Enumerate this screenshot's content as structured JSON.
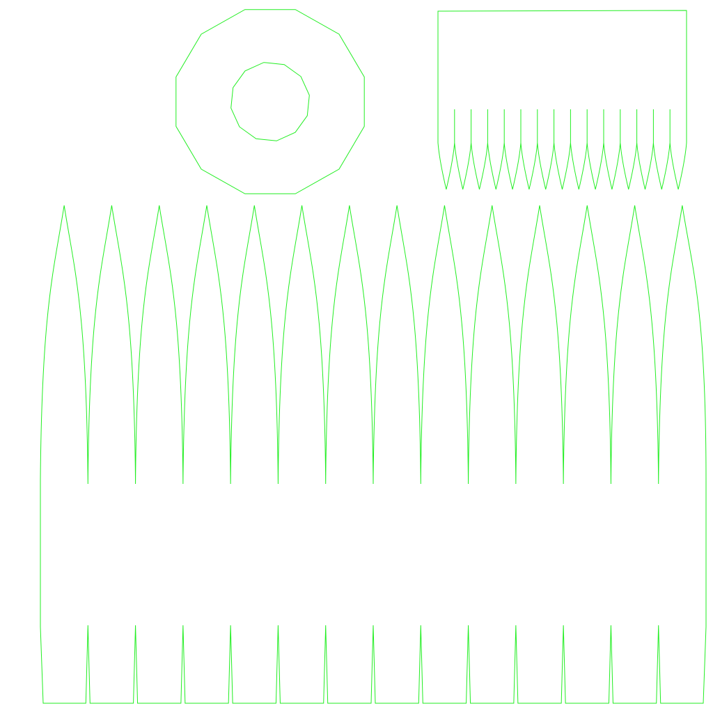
{
  "image": {
    "background": "#ffffff",
    "line_color": "#22ee22",
    "description_kind": "uv-layout-wireframe"
  },
  "islands": [
    {
      "name": "ring-island",
      "shape": "dodecagon-ring",
      "outer_sides": 12,
      "inner_sides": 12
    },
    {
      "name": "small-comb-island",
      "shape": "comb",
      "teeth": 15
    },
    {
      "name": "large-comb-island",
      "shape": "comb",
      "teeth": 14
    }
  ]
}
